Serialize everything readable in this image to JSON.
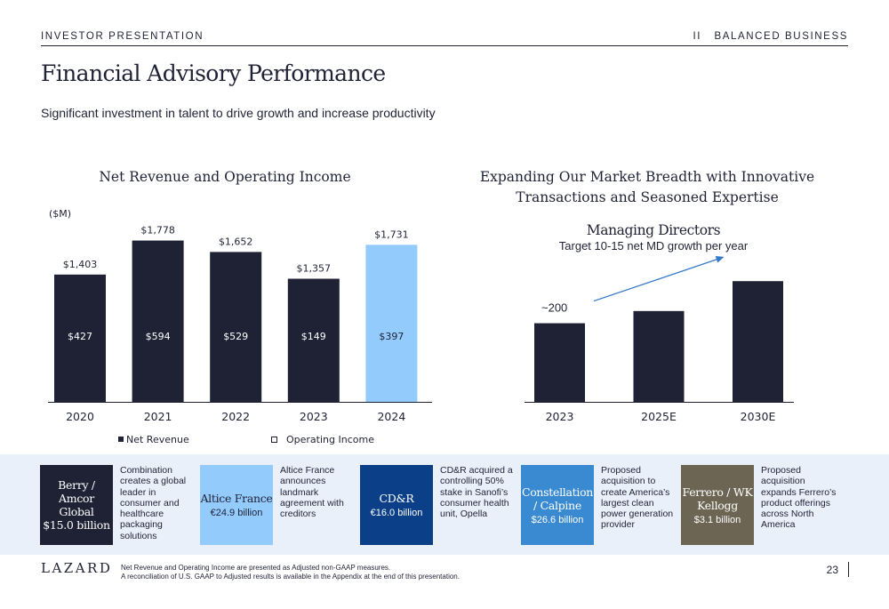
{
  "header": {
    "left": "INVESTOR PRESENTATION",
    "right": "II   BALANCED BUSINESS"
  },
  "title": "Financial Advisory Performance",
  "subtitle": "Significant investment in talent to drive growth and increase productivity",
  "left_chart_title": "Net Revenue and Operating Income",
  "right_chart_title_line1": "Expanding Our Market Breadth with Innovative",
  "right_chart_title_line2": "Transactions and Seasoned Expertise",
  "chart_data": [
    {
      "type": "bar",
      "title": "Net Revenue and Operating Income",
      "unit_label": "($M)",
      "categories": [
        "2020",
        "2021",
        "2022",
        "2023",
        "2024"
      ],
      "series": [
        {
          "name": "Net Revenue",
          "values": [
            1403,
            1778,
            1652,
            1357,
            1731
          ],
          "labels": [
            "$1,403",
            "$1,778",
            "$1,652",
            "$1,357",
            "$1,731"
          ]
        },
        {
          "name": "Operating Income",
          "values": [
            427,
            594,
            529,
            149,
            397
          ],
          "labels": [
            "$427",
            "$594",
            "$529",
            "$149",
            "$397"
          ]
        }
      ],
      "colors": {
        "primary": "#1f2235",
        "highlight": "#94cbfd",
        "highlight_category": "2024"
      },
      "legend_position": "bottom",
      "ylim": [
        0,
        1950
      ]
    },
    {
      "type": "bar",
      "title": "Managing Directors",
      "subtitle": "Target 10-15 net MD growth per year",
      "categories": [
        "2023",
        "2025E",
        "2030E"
      ],
      "values": [
        200,
        231,
        307
      ],
      "labels": [
        "~200",
        "",
        ""
      ],
      "colors": {
        "bar": "#1f2235",
        "arrow": "#3579c8"
      },
      "trend_arrow": true,
      "ylim": [
        0,
        450
      ]
    }
  ],
  "transactions": [
    {
      "name": "Berry / Amcor Global",
      "value": "$15.0 billion",
      "value_serif": true,
      "color": "#1f2235",
      "text_color": "#ffffff",
      "description": "Combination creates a global leader in consumer and healthcare packaging solutions"
    },
    {
      "name": "Altice France",
      "value": "€24.9 billion",
      "value_serif": false,
      "color": "#94cbfd",
      "text_color": "#1f2235",
      "description": "Altice France announces landmark agreement with creditors"
    },
    {
      "name": "CD&R",
      "value": "€16.0 billion",
      "value_serif": false,
      "color": "#0b3f88",
      "text_color": "#ffffff",
      "description": "CD&R acquired a controlling 50% stake in Sanofi’s consumer health unit, Opella"
    },
    {
      "name": "Constellation / Calpine",
      "value": "$26.6 billion",
      "value_serif": false,
      "color": "#3a8ad1",
      "text_color": "#ffffff",
      "description": "Proposed acquisition to create America’s largest clean power generation provider"
    },
    {
      "name": "Ferrero / WK Kellogg",
      "value": "$3.1 billion",
      "value_serif": false,
      "color": "#6d6554",
      "text_color": "#ffffff",
      "description": "Proposed acquisition expands Ferrero’s product offerings across North America"
    }
  ],
  "footer": {
    "logo": "LAZARD",
    "note_line1": "Net Revenue and Operating Income are presented as Adjusted non-GAAP measures.",
    "note_line2": "A reconciliation of U.S. GAAP to Adjusted results is available in the Appendix at the end of this presentation.",
    "page": "23"
  }
}
